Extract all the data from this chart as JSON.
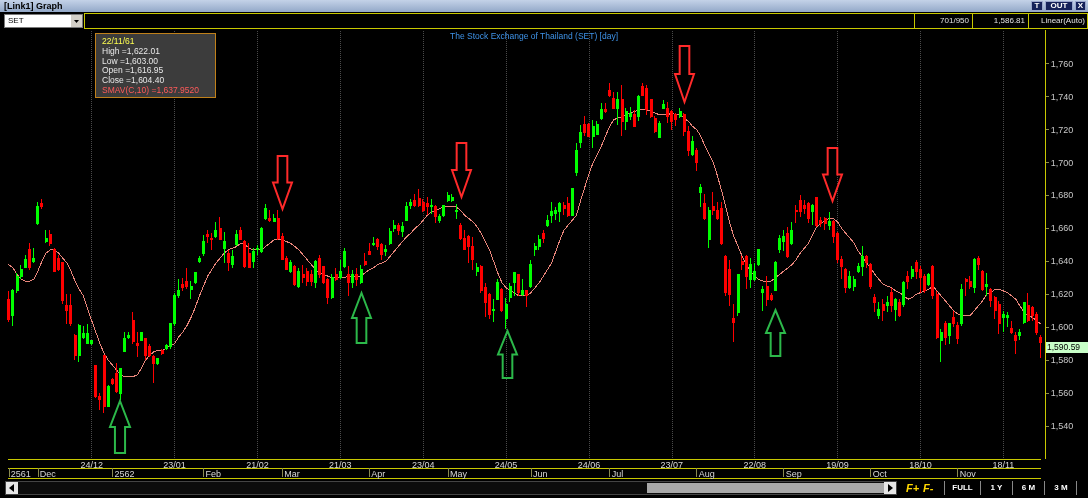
{
  "chart_data": {
    "type": "candlestick",
    "title": "The Stock Exchange of Thailand (SET) [day]",
    "categories": [
      null,
      null,
      null,
      null,
      null,
      null,
      null,
      null,
      null,
      null,
      null,
      null,
      null,
      null,
      null,
      null,
      null,
      null,
      null,
      null,
      "24/12",
      null,
      null,
      null,
      null,
      null,
      null,
      null,
      null,
      null,
      null,
      null,
      null,
      null,
      null,
      null,
      null,
      null,
      null,
      null,
      "23/01",
      null,
      null,
      null,
      null,
      null,
      null,
      null,
      null,
      null,
      null,
      null,
      null,
      null,
      null,
      null,
      null,
      null,
      null,
      null,
      "21/02",
      null,
      null,
      null,
      null,
      null,
      null,
      null,
      null,
      null,
      null,
      null,
      null,
      null,
      null,
      null,
      null,
      null,
      null,
      null,
      "21/03",
      null,
      null,
      null,
      null,
      null,
      null,
      null,
      null,
      null,
      null,
      null,
      null,
      null,
      null,
      null,
      null,
      null,
      null,
      null,
      "23/04",
      null,
      null,
      null,
      null,
      null,
      null,
      null,
      null,
      null,
      null,
      null,
      null,
      null,
      null,
      null,
      null,
      null,
      null,
      null,
      "24/05",
      null,
      null,
      null,
      null,
      null,
      null,
      null,
      null,
      null,
      null,
      null,
      null,
      null,
      null,
      null,
      null,
      null,
      null,
      null,
      "24/06",
      null,
      null,
      null,
      null,
      null,
      null,
      null,
      null,
      null,
      null,
      null,
      null,
      null,
      null,
      null,
      null,
      null,
      null,
      null,
      "23/07",
      null,
      null,
      null,
      null,
      null,
      null,
      null,
      null,
      null,
      null,
      null,
      null,
      null,
      null,
      null,
      null,
      null,
      null,
      null,
      "22/08",
      null,
      null,
      null,
      null,
      null,
      null,
      null,
      null,
      null,
      null,
      null,
      null,
      null,
      null,
      null,
      null,
      null,
      null,
      null,
      "19/09",
      null,
      null,
      null,
      null,
      null,
      null,
      null,
      null,
      null,
      null,
      null,
      null,
      null,
      null,
      null,
      null,
      null,
      null,
      null,
      "18/10",
      null,
      null,
      null,
      null,
      null,
      null,
      null,
      null,
      null,
      null,
      null,
      null,
      null,
      null,
      null,
      null,
      null,
      null,
      null,
      "18/11",
      null,
      null,
      null,
      null,
      null,
      null,
      null,
      null,
      null
    ],
    "ohlc": [
      [
        1616.95,
        1622.01,
        1603,
        1604.4
      ],
      [
        1607,
        1623,
        1601,
        1622
      ],
      [
        1622,
        1633,
        1621,
        1631
      ],
      [
        1631,
        1638,
        1629,
        1635
      ],
      [
        1636,
        1644,
        1636,
        1641
      ],
      [
        1647,
        1651,
        1635,
        1636
      ],
      [
        1640,
        1648,
        1639,
        1642
      ],
      [
        1663,
        1676,
        1662,
        1673
      ],
      [
        1675,
        1678,
        1672,
        1673
      ],
      [
        1652,
        1659,
        1651,
        1654
      ],
      [
        1656,
        1659,
        1649,
        1651
      ],
      [
        1647,
        1648,
        1634,
        1634
      ],
      [
        1642,
        1644,
        1634,
        1635
      ],
      [
        1639,
        1639,
        1614,
        1616
      ],
      [
        1613,
        1620,
        1602,
        1610
      ],
      [
        1613,
        1620,
        1601,
        1602
      ],
      [
        1595,
        1596,
        1580,
        1583
      ],
      [
        1583,
        1602,
        1579,
        1601
      ],
      [
        1594,
        1601,
        1593,
        1596
      ],
      [
        1590,
        1602,
        1590,
        1596
      ],
      [
        1590,
        1592,
        1589,
        1592
      ],
      [
        1577,
        1577,
        1557,
        1558
      ],
      [
        1558,
        1560,
        1550,
        1556
      ],
      [
        1583,
        1583,
        1548,
        1552
      ],
      [
        1552,
        1565,
        1552,
        1564
      ],
      [
        1568,
        1569,
        1565,
        1566
      ],
      [
        1572,
        1578,
        1560,
        1561
      ],
      [
        1560,
        1575,
        1556,
        1575
      ],
      [
        1585,
        1597,
        1585,
        1593
      ],
      [
        1594,
        1597,
        1593,
        1595
      ],
      [
        1604,
        1609,
        1590,
        1591
      ],
      [
        1590,
        1597,
        1582,
        1589
      ],
      [
        1592,
        1597,
        1592,
        1597
      ],
      [
        1593,
        1593,
        1580,
        1583
      ],
      [
        1588,
        1590,
        1582,
        1583
      ],
      [
        1582,
        1583,
        1566,
        1578
      ],
      [
        1578,
        1581,
        1577,
        1581
      ],
      [
        1586,
        1587,
        1583,
        1584
      ],
      [
        1587,
        1590,
        1586,
        1589
      ],
      [
        1588,
        1602,
        1587,
        1602
      ],
      [
        1602,
        1621,
        1601,
        1619
      ],
      [
        1619,
        1629,
        1618,
        1622
      ],
      [
        1626,
        1630,
        1622,
        1624
      ],
      [
        1628,
        1636,
        1623,
        1625
      ],
      [
        1623,
        1628,
        1617,
        1625
      ],
      [
        1627,
        1633,
        1626,
        1633
      ],
      [
        1640,
        1643,
        1639,
        1642
      ],
      [
        1645,
        1656,
        1643,
        1652
      ],
      [
        1656,
        1659,
        1651,
        1655
      ],
      [
        1654,
        1657,
        1647,
        1653
      ],
      [
        1655,
        1664,
        1654,
        1659
      ],
      [
        1660,
        1667,
        1653,
        1653
      ],
      [
        1648,
        1658,
        1639,
        1652
      ],
      [
        1645,
        1647,
        1634,
        1639
      ],
      [
        1638,
        1647,
        1636,
        1643
      ],
      [
        1650,
        1659,
        1649,
        1656
      ],
      [
        1659,
        1661,
        1653,
        1653
      ],
      [
        1652,
        1653,
        1636,
        1637
      ],
      [
        1645,
        1651,
        1636,
        1636
      ],
      [
        1640,
        1648,
        1636,
        1646
      ],
      [
        1647,
        1650,
        1644,
        1648
      ],
      [
        1646,
        1661,
        1645,
        1660
      ],
      [
        1666,
        1675,
        1665,
        1672
      ],
      [
        1666,
        1671,
        1664,
        1665
      ],
      [
        1664,
        1669,
        1664,
        1666
      ],
      [
        1666,
        1671,
        1653,
        1654
      ],
      [
        1655,
        1657,
        1641,
        1641
      ],
      [
        1642,
        1643,
        1635,
        1635
      ],
      [
        1634,
        1641,
        1633,
        1639
      ],
      [
        1637,
        1638,
        1625,
        1626
      ],
      [
        1625,
        1636,
        1624,
        1634
      ],
      [
        1632,
        1638,
        1627,
        1630
      ],
      [
        1634,
        1636,
        1625,
        1628
      ],
      [
        1632,
        1635,
        1625,
        1628
      ],
      [
        1627,
        1641,
        1624,
        1640
      ],
      [
        1642,
        1644,
        1630,
        1632
      ],
      [
        1637,
        1637,
        1626,
        1627
      ],
      [
        1629,
        1630,
        1614,
        1618
      ],
      [
        1618,
        1632,
        1617,
        1630
      ],
      [
        1632,
        1636,
        1628,
        1629
      ],
      [
        1630,
        1641,
        1629,
        1634
      ],
      [
        1637,
        1648,
        1636,
        1646
      ],
      [
        1632,
        1637,
        1619,
        1627
      ],
      [
        1627,
        1635,
        1624,
        1632
      ],
      [
        1632,
        1636,
        1625,
        1629
      ],
      [
        1627,
        1638,
        1626,
        1635
      ],
      [
        1640,
        1645,
        1637,
        1638
      ],
      [
        1646,
        1651,
        1644,
        1644
      ],
      [
        1650,
        1655,
        1649,
        1651
      ],
      [
        1653,
        1654,
        1647,
        1649
      ],
      [
        1650,
        1651,
        1641,
        1644
      ],
      [
        1646,
        1650,
        1643,
        1647
      ],
      [
        1651,
        1660,
        1650,
        1658
      ],
      [
        1660,
        1665,
        1658,
        1662
      ],
      [
        1662,
        1663,
        1656,
        1659
      ],
      [
        1658,
        1664,
        1655,
        1661
      ],
      [
        1665,
        1676,
        1665,
        1673
      ],
      [
        1674,
        1678,
        1672,
        1676
      ],
      [
        1677,
        1681,
        1673,
        1674
      ],
      [
        1678,
        1684,
        1673,
        1674
      ],
      [
        1676,
        1678,
        1670,
        1671
      ],
      [
        1675,
        1679,
        1668,
        1673
      ],
      [
        1673,
        1678,
        1669,
        1674
      ],
      [
        1673,
        1674,
        1663,
        1667
      ],
      [
        1665,
        1669,
        1663,
        1667
      ],
      [
        1668,
        1674,
        1667,
        1674
      ],
      [
        1677,
        1682,
        1676,
        1680
      ],
      [
        1677,
        1681,
        1676,
        1679
      ],
      [
        1670,
        1675,
        1666,
        1671
      ],
      [
        1662,
        1663,
        1653,
        1654
      ],
      [
        1654,
        1659,
        1647,
        1647
      ],
      [
        1655,
        1656,
        1639,
        1649
      ],
      [
        1649,
        1655,
        1635,
        1641
      ],
      [
        1634,
        1639,
        1631,
        1636
      ],
      [
        1637,
        1638,
        1621,
        1622
      ],
      [
        1624,
        1627,
        1606,
        1615
      ],
      [
        1620,
        1621,
        1605,
        1608
      ],
      [
        1610,
        1617,
        1603,
        1611
      ],
      [
        1617,
        1629,
        1617,
        1627
      ],
      [
        1623,
        1624,
        1609,
        1610
      ],
      [
        1605,
        1618,
        1599,
        1614
      ],
      [
        1618,
        1627,
        1615,
        1625
      ],
      [
        1627,
        1633,
        1619,
        1633
      ],
      [
        1632,
        1632,
        1619,
        1621
      ],
      [
        1620,
        1629,
        1619,
        1622
      ],
      [
        1622,
        1622,
        1612,
        1619
      ],
      [
        1625,
        1641,
        1624,
        1638
      ],
      [
        1647,
        1651,
        1643,
        1649
      ],
      [
        1649,
        1656,
        1647,
        1653
      ],
      [
        1657,
        1659,
        1651,
        1654
      ],
      [
        1662,
        1668,
        1661,
        1665
      ],
      [
        1668,
        1676,
        1663,
        1670
      ],
      [
        1669,
        1673,
        1665,
        1671
      ],
      [
        1670,
        1676,
        1664,
        1675
      ],
      [
        1674,
        1676,
        1668,
        1672
      ],
      [
        1675,
        1679,
        1667,
        1668
      ],
      [
        1668,
        1684,
        1668,
        1684
      ],
      [
        1694,
        1712,
        1692,
        1707
      ],
      [
        1712,
        1723,
        1709,
        1718
      ],
      [
        1723,
        1728,
        1716,
        1718
      ],
      [
        1723,
        1724,
        1716,
        1716
      ],
      [
        1716,
        1726,
        1709,
        1722
      ],
      [
        1717,
        1725,
        1717,
        1723
      ],
      [
        1727,
        1736,
        1726,
        1732
      ],
      [
        1732,
        1736,
        1730,
        1731
      ],
      [
        1744,
        1748,
        1740,
        1741
      ],
      [
        1739,
        1743,
        1733,
        1733
      ],
      [
        1733,
        1743,
        1723,
        1738
      ],
      [
        1738,
        1747,
        1716,
        1725
      ],
      [
        1725,
        1733,
        1720,
        1731
      ],
      [
        1728,
        1734,
        1726,
        1730
      ],
      [
        1729,
        1732,
        1722,
        1722
      ],
      [
        1728,
        1741,
        1725,
        1740
      ],
      [
        1746,
        1748,
        1741,
        1741
      ],
      [
        1745,
        1747,
        1729,
        1732
      ],
      [
        1738,
        1738,
        1727,
        1728
      ],
      [
        1727,
        1728,
        1718,
        1719
      ],
      [
        1715,
        1725,
        1715,
        1724
      ],
      [
        1733,
        1738,
        1733,
        1735
      ],
      [
        1733,
        1737,
        1724,
        1728
      ],
      [
        1731,
        1732,
        1720,
        1725
      ],
      [
        1729,
        1730,
        1722,
        1726
      ],
      [
        1728,
        1733,
        1727,
        1731
      ],
      [
        1729,
        1730,
        1716,
        1719
      ],
      [
        1719,
        1722,
        1704,
        1707
      ],
      [
        1705,
        1716,
        1704,
        1713
      ],
      [
        1707,
        1709,
        1695,
        1700
      ],
      [
        1682,
        1687,
        1673,
        1685
      ],
      [
        1675,
        1681,
        1665,
        1666
      ],
      [
        1653,
        1673,
        1648,
        1671
      ],
      [
        1673,
        1682,
        1668,
        1671
      ],
      [
        1671,
        1676,
        1665,
        1666
      ],
      [
        1672,
        1676,
        1650,
        1651
      ],
      [
        1643,
        1644,
        1619,
        1621
      ],
      [
        1635,
        1641,
        1613,
        1620
      ],
      [
        1605,
        1614,
        1591,
        1603
      ],
      [
        1609,
        1632,
        1607,
        1632
      ],
      [
        1640,
        1643,
        1635,
        1638
      ],
      [
        1643,
        1644,
        1623,
        1631
      ],
      [
        1629,
        1642,
        1624,
        1638
      ],
      [
        1629,
        1639,
        1628,
        1634
      ],
      [
        1638,
        1647,
        1637,
        1647
      ],
      [
        1621,
        1625,
        1610,
        1623
      ],
      [
        1625,
        1631,
        1613,
        1617
      ],
      [
        1619,
        1621,
        1616,
        1617
      ],
      [
        1622,
        1640,
        1622,
        1639
      ],
      [
        1647,
        1656,
        1645,
        1654
      ],
      [
        1652,
        1659,
        1646,
        1655
      ],
      [
        1657,
        1661,
        1642,
        1643
      ],
      [
        1651,
        1664,
        1650,
        1659
      ],
      [
        1671,
        1674,
        1663,
        1670
      ],
      [
        1677,
        1680,
        1667,
        1670
      ],
      [
        1674,
        1677,
        1669,
        1672
      ],
      [
        1675,
        1676,
        1663,
        1666
      ],
      [
        1670,
        1675,
        1662,
        1674
      ],
      [
        1679,
        1679,
        1661,
        1662
      ],
      [
        1665,
        1667,
        1661,
        1663
      ],
      [
        1666,
        1667,
        1659,
        1663
      ],
      [
        1662,
        1670,
        1659,
        1664
      ],
      [
        1664,
        1665,
        1651,
        1655
      ],
      [
        1657,
        1658,
        1639,
        1641
      ],
      [
        1641,
        1643,
        1629,
        1637
      ],
      [
        1635,
        1636,
        1621,
        1624
      ],
      [
        1624,
        1634,
        1623,
        1631
      ],
      [
        1625,
        1631,
        1622,
        1629
      ],
      [
        1634,
        1639,
        1633,
        1637
      ],
      [
        1637,
        1649,
        1631,
        1643
      ],
      [
        1643,
        1644,
        1636,
        1639
      ],
      [
        1638,
        1639,
        1623,
        1625
      ],
      [
        1618,
        1620,
        1609,
        1615
      ],
      [
        1607,
        1615,
        1605,
        1611
      ],
      [
        1614,
        1617,
        1604,
        1610
      ],
      [
        1613,
        1619,
        1609,
        1615
      ],
      [
        1621,
        1624,
        1609,
        1613
      ],
      [
        1611,
        1618,
        1604,
        1617
      ],
      [
        1615,
        1617,
        1606,
        1607
      ],
      [
        1614,
        1628,
        1612,
        1627
      ],
      [
        1631,
        1634,
        1623,
        1628
      ],
      [
        1631,
        1637,
        1629,
        1635
      ],
      [
        1639,
        1641,
        1629,
        1634
      ],
      [
        1635,
        1637,
        1621,
        1630
      ],
      [
        1631,
        1632,
        1621,
        1622
      ],
      [
        1626,
        1633,
        1625,
        1632
      ],
      [
        1637,
        1638,
        1617,
        1619
      ],
      [
        1620,
        1622,
        1593,
        1594
      ],
      [
        1592,
        1599,
        1579,
        1597
      ],
      [
        1602,
        1604,
        1589,
        1594
      ],
      [
        1595,
        1602,
        1590,
        1602
      ],
      [
        1606,
        1610,
        1600,
        1602
      ],
      [
        1601,
        1603,
        1590,
        1593
      ],
      [
        1602,
        1626,
        1601,
        1623
      ],
      [
        1629,
        1630,
        1619,
        1628
      ],
      [
        1628,
        1631,
        1623,
        1625
      ],
      [
        1624,
        1642,
        1621,
        1641
      ],
      [
        1642,
        1643,
        1635,
        1638
      ],
      [
        1634,
        1635,
        1622,
        1623
      ],
      [
        1625,
        1633,
        1619,
        1626
      ],
      [
        1623,
        1624,
        1612,
        1616
      ],
      [
        1618,
        1619,
        1605,
        1610
      ],
      [
        1614,
        1616,
        1596,
        1602
      ],
      [
        1606,
        1610,
        1597,
        1608
      ],
      [
        1606,
        1609,
        1600,
        1607
      ],
      [
        1599,
        1604,
        1596,
        1597
      ],
      [
        1595,
        1597,
        1584,
        1592
      ],
      [
        1595,
        1599,
        1592,
        1597
      ],
      [
        1603,
        1615,
        1602,
        1615
      ],
      [
        1613,
        1621,
        1603,
        1604
      ],
      [
        1612,
        1613,
        1604,
        1607
      ],
      [
        1608,
        1609,
        1595,
        1597
      ],
      [
        1594,
        1595,
        1581,
        1590.59
      ]
    ],
    "colors": [
      "#ff0000",
      "#00ff00",
      "#00ff00",
      "#00ff00",
      "#00ff00",
      "#ff0000",
      "#00ff00",
      "#00ff00",
      "#ff0000",
      "#00ff00",
      "#ff0000",
      "#ff0000",
      "#ff0000",
      "#ff0000",
      "#ff0000",
      "#ff0000",
      "#ff0000",
      "#00ff00",
      "#00ff00",
      "#00ff00",
      "#00ff00",
      "#ff0000",
      "#ff0000",
      "#ff0000",
      "#00ff00",
      "#ff0000",
      "#ff0000",
      "#00ff00",
      "#00ff00",
      "#00ff00",
      "#ff0000",
      "#ff0000",
      "#00ff00",
      "#ff0000",
      "#ff0000",
      "#ff0000",
      "#00ff00",
      "#ff0000",
      "#00ff00",
      "#00ff00",
      "#00ff00",
      "#00ff00",
      "#ff0000",
      "#ff0000",
      "#00ff00",
      "#00ff00",
      "#00ff00",
      "#00ff00",
      "#ff0000",
      "#ff0000",
      "#00ff00",
      "#ff0000",
      "#00ff00",
      "#ff0000",
      "#00ff00",
      "#00ff00",
      "#ff0000",
      "#ff0000",
      "#ff0000",
      "#00ff00",
      "#00ff00",
      "#00ff00",
      "#00ff00",
      "#ff0000",
      "#00ff00",
      "#ff0000",
      "#ff0000",
      "#ff0000",
      "#00ff00",
      "#ff0000",
      "#00ff00",
      "#ff0000",
      "#ff0000",
      "#ff0000",
      "#00ff00",
      "#ff0000",
      "#ff0000",
      "#ff0000",
      "#00ff00",
      "#ff0000",
      "#00ff00",
      "#00ff00",
      "#ff0000",
      "#00ff00",
      "#ff0000",
      "#00ff00",
      "#ff0000",
      "#ff0000",
      "#00ff00",
      "#ff0000",
      "#ff0000",
      "#00ff00",
      "#00ff00",
      "#00ff00",
      "#ff0000",
      "#00ff00",
      "#00ff00",
      "#00ff00",
      "#ff0000",
      "#ff0000",
      "#ff0000",
      "#ff0000",
      "#00ff00",
      "#ff0000",
      "#00ff00",
      "#00ff00",
      "#00ff00",
      "#00ff00",
      "#00ff00",
      "#ff0000",
      "#ff0000",
      "#ff0000",
      "#ff0000",
      "#00ff00",
      "#ff0000",
      "#ff0000",
      "#ff0000",
      "#00ff00",
      "#00ff00",
      "#ff0000",
      "#00ff00",
      "#00ff00",
      "#00ff00",
      "#ff0000",
      "#00ff00",
      "#ff0000",
      "#00ff00",
      "#00ff00",
      "#00ff00",
      "#ff0000",
      "#00ff00",
      "#00ff00",
      "#00ff00",
      "#00ff00",
      "#ff0000",
      "#ff0000",
      "#00ff00",
      "#00ff00",
      "#00ff00",
      "#ff0000",
      "#ff0000",
      "#00ff00",
      "#00ff00",
      "#00ff00",
      "#ff0000",
      "#ff0000",
      "#ff0000",
      "#00ff00",
      "#ff0000",
      "#00ff00",
      "#00ff00",
      "#ff0000",
      "#00ff00",
      "#ff0000",
      "#ff0000",
      "#ff0000",
      "#ff0000",
      "#00ff00",
      "#00ff00",
      "#ff0000",
      "#ff0000",
      "#ff0000",
      "#00ff00",
      "#ff0000",
      "#ff0000",
      "#00ff00",
      "#ff0000",
      "#00ff00",
      "#ff0000",
      "#00ff00",
      "#ff0000",
      "#ff0000",
      "#ff0000",
      "#ff0000",
      "#ff0000",
      "#ff0000",
      "#00ff00",
      "#ff0000",
      "#ff0000",
      "#00ff00",
      "#00ff00",
      "#00ff00",
      "#00ff00",
      "#ff0000",
      "#ff0000",
      "#00ff00",
      "#00ff00",
      "#00ff00",
      "#ff0000",
      "#00ff00",
      "#ff0000",
      "#ff0000",
      "#ff0000",
      "#ff0000",
      "#00ff00",
      "#ff0000",
      "#ff0000",
      "#ff0000",
      "#00ff00",
      "#ff0000",
      "#ff0000",
      "#ff0000",
      "#ff0000",
      "#00ff00",
      "#00ff00",
      "#00ff00",
      "#00ff00",
      "#ff0000",
      "#ff0000",
      "#ff0000",
      "#00ff00",
      "#ff0000",
      "#00ff00",
      "#ff0000",
      "#00ff00",
      "#ff0000",
      "#00ff00",
      "#ff0000",
      "#00ff00",
      "#ff0000",
      "#ff0000",
      "#ff0000",
      "#00ff00",
      "#ff0000",
      "#ff0000",
      "#00ff00",
      "#ff0000",
      "#00ff00",
      "#ff0000",
      "#ff0000",
      "#00ff00",
      "#ff0000",
      "#ff0000",
      "#00ff00",
      "#ff0000",
      "#ff0000",
      "#00ff00",
      "#ff0000",
      "#ff0000",
      "#ff0000",
      "#00ff00",
      "#00ff00",
      "#ff0000",
      "#ff0000",
      "#00ff00",
      "#00ff00",
      "#ff0000",
      "#ff0000",
      "#ff0000",
      "#ff0000"
    ],
    "series": [
      {
        "type": "line",
        "color": "#e8857a",
        "values": [
          1638,
          1636,
          1632,
          1629,
          1628,
          1628,
          1629,
          1634,
          1640,
          1645,
          1647,
          1647,
          1645,
          1642,
          1639,
          1634,
          1628,
          1623,
          1619,
          1611,
          1604,
          1597,
          1590,
          1584,
          1580,
          1577,
          1574,
          1571,
          1570,
          1570,
          1570,
          1571,
          1575,
          1580,
          1583,
          1585,
          1586,
          1586,
          1587,
          1589,
          1590,
          1594,
          1597,
          1601,
          1606,
          1612,
          1619,
          1625,
          1631,
          1635,
          1639,
          1642,
          1645,
          1647,
          1648,
          1649,
          1651,
          1650,
          1648,
          1647,
          1647,
          1647,
          1649,
          1651,
          1653,
          1653,
          1653,
          1652,
          1651,
          1649,
          1647,
          1644,
          1641,
          1638,
          1635,
          1633,
          1632,
          1631,
          1630,
          1630,
          1630,
          1630,
          1631,
          1631,
          1631,
          1631,
          1633,
          1635,
          1636,
          1638,
          1639,
          1640,
          1643,
          1646,
          1649,
          1652,
          1655,
          1657,
          1660,
          1662,
          1665,
          1668,
          1670,
          1671,
          1672,
          1673,
          1673,
          1673,
          1673,
          1671,
          1668,
          1666,
          1664,
          1661,
          1657,
          1652,
          1647,
          1640,
          1633,
          1627,
          1624,
          1622,
          1621,
          1619,
          1619,
          1619,
          1621,
          1624,
          1627,
          1631,
          1635,
          1639,
          1646,
          1653,
          1659,
          1662,
          1665,
          1668,
          1677,
          1685,
          1693,
          1700,
          1705,
          1710,
          1716,
          1722,
          1726,
          1727,
          1728,
          1729,
          1730,
          1731,
          1732,
          1732,
          1732,
          1731,
          1730,
          1729,
          1729,
          1729,
          1730,
          1729,
          1729,
          1727,
          1725,
          1722,
          1720,
          1716,
          1710,
          1705,
          1700,
          1692,
          1683,
          1673,
          1663,
          1655,
          1649,
          1643,
          1638,
          1634,
          1631,
          1629,
          1628,
          1628,
          1628,
          1630,
          1632,
          1634,
          1636,
          1638,
          1641,
          1645,
          1648,
          1651,
          1656,
          1661,
          1663,
          1665,
          1666,
          1666,
          1664,
          1660,
          1657,
          1654,
          1651,
          1646,
          1643,
          1639,
          1636,
          1632,
          1629,
          1626,
          1625,
          1624,
          1622,
          1621,
          1619,
          1617,
          1618,
          1620,
          1621,
          1622,
          1623,
          1625,
          1622,
          1619,
          1616,
          1613,
          1610,
          1608,
          1607,
          1607,
          1607,
          1610,
          1613,
          1616,
          1620,
          1621,
          1623,
          1623,
          1622,
          1621,
          1619,
          1617,
          1613,
          1609,
          1607,
          1606,
          1604,
          1602
        ]
      }
    ],
    "ylim": [
      1520,
      1780
    ],
    "yticks": [
      {
        "value": 1540,
        "label": "1,540"
      },
      {
        "value": 1560,
        "label": "1,560"
      },
      {
        "value": 1580,
        "label": "1,580"
      },
      {
        "value": 1600,
        "label": "1,600"
      },
      {
        "value": 1620,
        "label": "1,620"
      },
      {
        "value": 1640,
        "label": "1,640"
      },
      {
        "value": 1660,
        "label": "1,660"
      },
      {
        "value": 1680,
        "label": "1,680"
      },
      {
        "value": 1700,
        "label": "1,700"
      },
      {
        "value": 1720,
        "label": "1,720"
      },
      {
        "value": 1740,
        "label": "1,740"
      },
      {
        "value": 1760,
        "label": "1,760"
      }
    ],
    "grid": "x",
    "annotations": [
      "[Link1] Graph",
      "SET",
      "701/950",
      "1,586.81",
      "Linear(Auto)",
      "T",
      "OUT",
      "X",
      "22/11/61",
      "High =1,622.01",
      "Low =1,603.00",
      "Open =1,616.95",
      "Close =1,604.40",
      "SMAV(C,10) =1,637.9520",
      "1,590.59",
      "2561",
      "Dec",
      "2562",
      "Feb",
      "Mar",
      "Apr",
      "May",
      "Jun",
      "Jul",
      "Aug",
      "Sep",
      "Oct",
      "Nov",
      "F+",
      "F-",
      "FULL",
      "1 Y",
      "6 M",
      "3 M"
    ]
  }
}
